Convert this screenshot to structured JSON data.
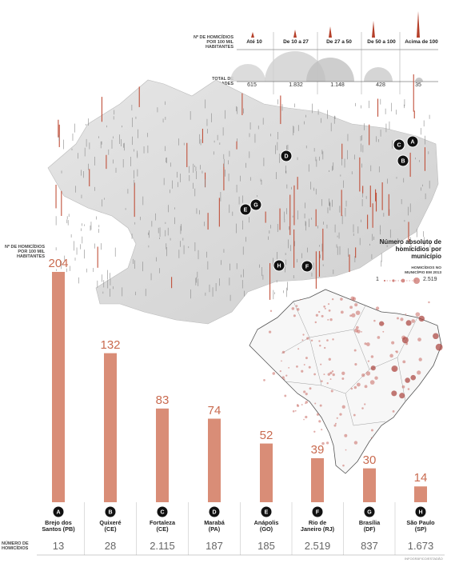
{
  "legend": {
    "rate_header": "Nº DE HOMICÍDIOS POR 100 MIL HABITANTES",
    "total_header": "TOTAL DE CIDADES",
    "categories": [
      {
        "label": "Até 10",
        "total": "615"
      },
      {
        "label": "De 10 a 27",
        "total": "1.832"
      },
      {
        "label": "De 27 a 50",
        "total": "1.148"
      },
      {
        "label": "De 50 a 100",
        "total": "428"
      },
      {
        "label": "Acima de 100",
        "total": "35"
      }
    ]
  },
  "map_legend": {
    "title": "Número absoluto de homicídios por município",
    "subtitle": "HOMICÍDIOS NO MUNICÍPIO EM 2013",
    "min_label": "1",
    "max_label": "2.519"
  },
  "chart_data": {
    "type": "bar",
    "ylabel": "Nº DE HOMICÍDIOS POR 100 MIL HABITANTES",
    "row_label": "NÚMERO DE HOMICÍDIOS",
    "letters": [
      "A",
      "B",
      "C",
      "D",
      "E",
      "F",
      "G",
      "H"
    ],
    "categories": [
      "Brejo dos Santos (PB)",
      "Quixeré (CE)",
      "Fortaleza (CE)",
      "Marabá (PA)",
      "Anápolis (GO)",
      "Rio de Janeiro (RJ)",
      "Brasília (DF)",
      "São Paulo (SP)"
    ],
    "city_lines": [
      [
        "Brejo dos",
        "Santos (PB)"
      ],
      [
        "Quixeré",
        "(CE)"
      ],
      [
        "Fortaleza",
        "(CE)"
      ],
      [
        "Marabá",
        "(PA)"
      ],
      [
        "Anápolis",
        "(GO)"
      ],
      [
        "Rio de",
        "Janeiro (RJ)"
      ],
      [
        "Brasília",
        "(DF)"
      ],
      [
        "São Paulo",
        "(SP)"
      ]
    ],
    "values": [
      204,
      132,
      83,
      74,
      52,
      39,
      30,
      14
    ],
    "value_labels": [
      "204",
      "132",
      "83",
      "74",
      "52",
      "39",
      "30",
      "14"
    ],
    "homicides": [
      "13",
      "28",
      "2.115",
      "187",
      "185",
      "2.519",
      "837",
      "1.673"
    ],
    "bar_color": "#d98d77",
    "marker_color": "#111111"
  },
  "credit": "INFOGRÁFICO/ESTADÃO"
}
